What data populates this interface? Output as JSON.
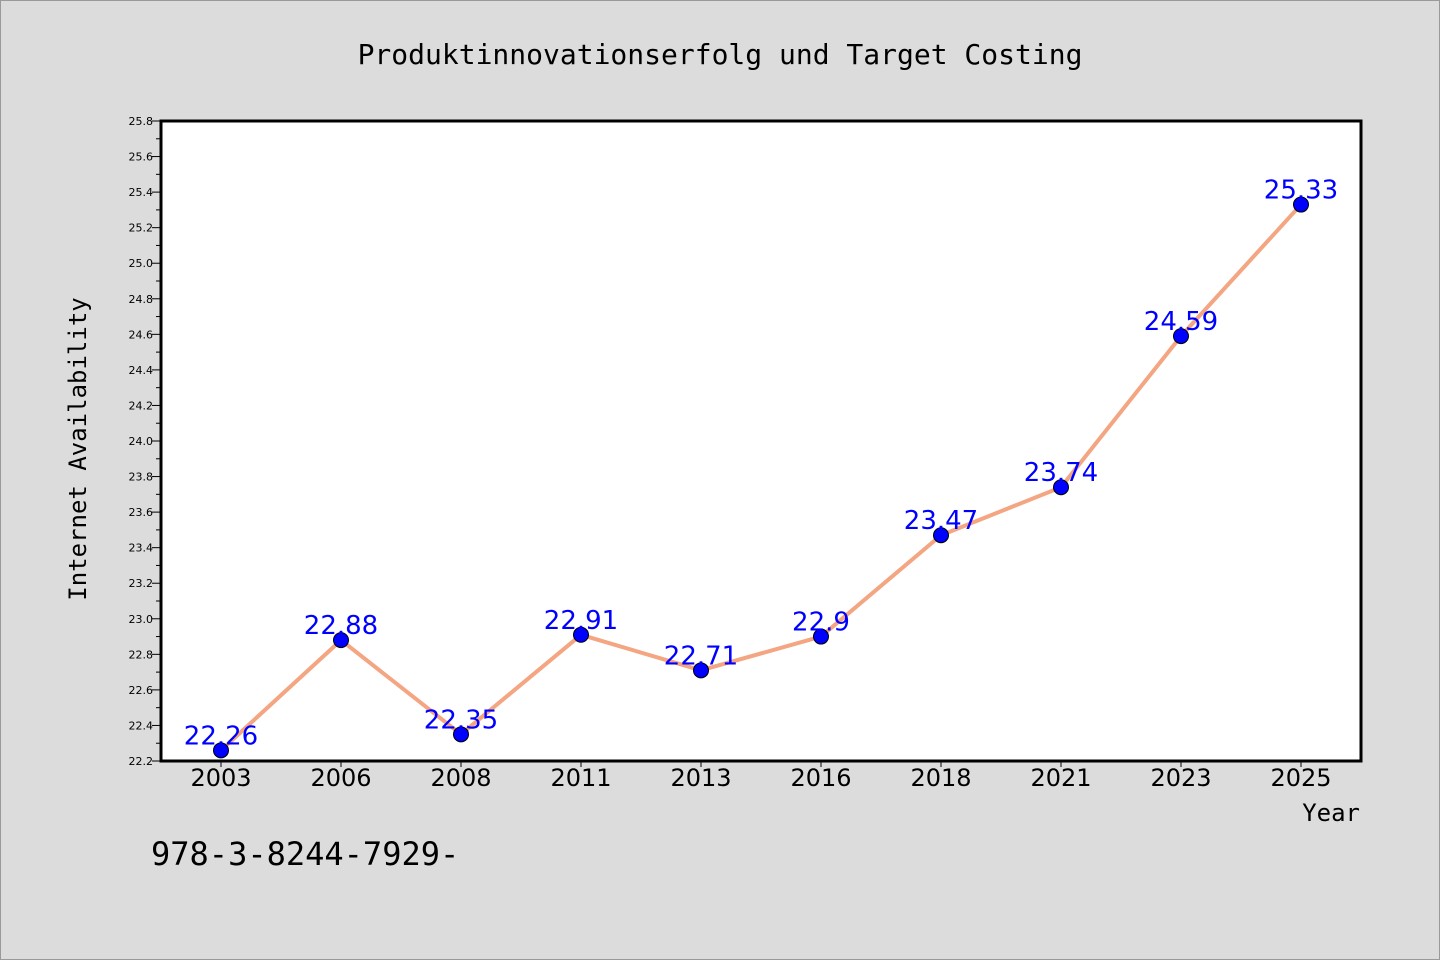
{
  "chart_data": {
    "type": "line",
    "title": "Produktinnovationserfolg und Target Costing",
    "xlabel": "Year",
    "ylabel": "Internet Availability",
    "categories": [
      "2003",
      "2006",
      "2008",
      "2011",
      "2013",
      "2016",
      "2018",
      "2021",
      "2023",
      "2025"
    ],
    "series": [
      {
        "values": [
          22.26,
          22.88,
          22.35,
          22.91,
          22.71,
          22.9,
          23.47,
          23.74,
          24.59,
          25.33
        ],
        "labels": [
          "22.26",
          "22.88",
          "22.35",
          "22.91",
          "22.71",
          "22.9",
          "23.47",
          "23.74",
          "24.59",
          "25.33"
        ]
      }
    ],
    "ylim": [
      22.2,
      25.8
    ],
    "yticks": [
      "22.2",
      "22.4",
      "22.6",
      "22.8",
      "23.0",
      "23.2",
      "23.4",
      "23.6",
      "23.8",
      "24.0",
      "24.2",
      "24.4",
      "24.6",
      "24.8",
      "25.0",
      "25.2",
      "25.4",
      "25.6",
      "25.8"
    ],
    "grid": false,
    "line_color": "#f4a582",
    "marker_color": "#0000ff",
    "label_color": "#0000ff",
    "footnote": "978-3-8244-7929-"
  }
}
